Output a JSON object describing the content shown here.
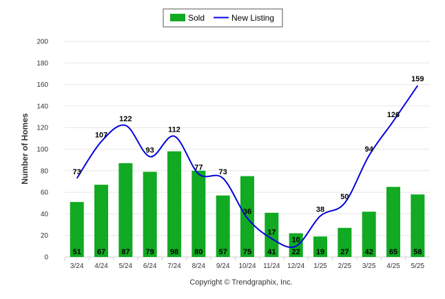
{
  "chart_data": {
    "type": "bar",
    "categories": [
      "3/24",
      "4/24",
      "5/24",
      "6/24",
      "7/24",
      "8/24",
      "9/24",
      "10/24",
      "11/24",
      "12/24",
      "1/25",
      "2/25",
      "3/25",
      "4/25",
      "5/25"
    ],
    "series": [
      {
        "name": "Sold",
        "type": "bar",
        "color": "#11aa22",
        "values": [
          51,
          67,
          87,
          79,
          98,
          80,
          57,
          75,
          41,
          22,
          19,
          27,
          42,
          65,
          58
        ]
      },
      {
        "name": "New Listing",
        "type": "line",
        "color": "#0000dd",
        "values": [
          73,
          107,
          122,
          93,
          112,
          77,
          73,
          36,
          17,
          10,
          38,
          50,
          94,
          126,
          159
        ]
      }
    ],
    "ylabel": "Number of Homes",
    "xlabel": "",
    "ylim": [
      0,
      200
    ],
    "yticks": [
      0,
      20,
      40,
      60,
      80,
      100,
      120,
      140,
      160,
      180,
      200
    ],
    "grid": true,
    "legend": "top-center"
  },
  "footer": {
    "copyright": "Copyright © Trendgraphix, Inc."
  }
}
